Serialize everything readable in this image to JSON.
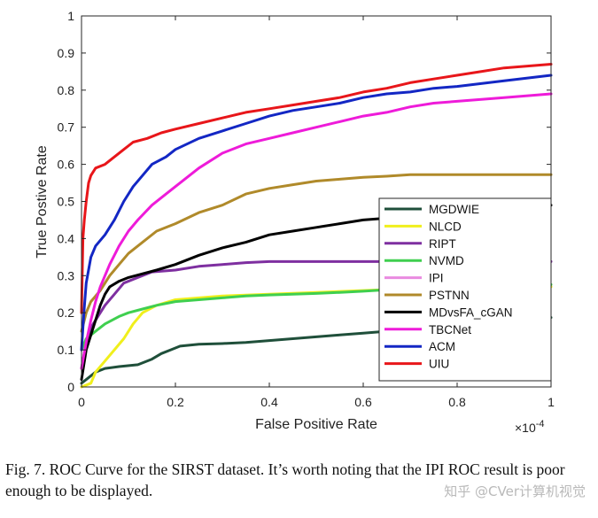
{
  "chart_data": {
    "type": "line",
    "title": "",
    "xlabel": "False Positive Rate",
    "ylabel": "True Postive Rate",
    "x_scale_label": "×10",
    "x_scale_exponent": "-4",
    "xlim": [
      0,
      1
    ],
    "ylim": [
      0,
      1
    ],
    "x_ticks": [
      0,
      0.2,
      0.4,
      0.6,
      0.8,
      1
    ],
    "x_tick_labels": [
      "0",
      "0.2",
      "0.4",
      "0.6",
      "0.8",
      "1"
    ],
    "y_ticks": [
      0,
      0.1,
      0.2,
      0.3,
      0.4,
      0.5,
      0.6,
      0.7,
      0.8,
      0.9,
      1
    ],
    "y_tick_labels": [
      "0",
      "0.1",
      "0.2",
      "0.3",
      "0.4",
      "0.5",
      "0.6",
      "0.7",
      "0.8",
      "0.9",
      "1"
    ],
    "grid": false,
    "legend_position": "lower-right",
    "series": [
      {
        "name": "MGDWIE",
        "color": "#1f4f3a",
        "points": [
          [
            0,
            0.01
          ],
          [
            0.02,
            0.03
          ],
          [
            0.03,
            0.04
          ],
          [
            0.05,
            0.05
          ],
          [
            0.08,
            0.055
          ],
          [
            0.12,
            0.06
          ],
          [
            0.15,
            0.075
          ],
          [
            0.17,
            0.09
          ],
          [
            0.19,
            0.1
          ],
          [
            0.21,
            0.11
          ],
          [
            0.25,
            0.115
          ],
          [
            0.3,
            0.117
          ],
          [
            0.35,
            0.12
          ],
          [
            0.4,
            0.125
          ],
          [
            0.45,
            0.13
          ],
          [
            0.5,
            0.135
          ],
          [
            0.55,
            0.14
          ],
          [
            0.6,
            0.145
          ],
          [
            0.65,
            0.15
          ],
          [
            0.7,
            0.16
          ],
          [
            0.8,
            0.172
          ],
          [
            0.9,
            0.18
          ],
          [
            1,
            0.187
          ]
        ]
      },
      {
        "name": "NLCD",
        "color": "#f0ef1c",
        "points": [
          [
            0,
            0
          ],
          [
            0.02,
            0.01
          ],
          [
            0.03,
            0.04
          ],
          [
            0.05,
            0.07
          ],
          [
            0.07,
            0.1
          ],
          [
            0.09,
            0.13
          ],
          [
            0.11,
            0.17
          ],
          [
            0.13,
            0.2
          ],
          [
            0.16,
            0.22
          ],
          [
            0.2,
            0.235
          ],
          [
            0.25,
            0.24
          ],
          [
            0.3,
            0.245
          ],
          [
            0.4,
            0.25
          ],
          [
            0.5,
            0.255
          ],
          [
            0.6,
            0.26
          ],
          [
            0.7,
            0.265
          ],
          [
            0.8,
            0.268
          ],
          [
            0.9,
            0.27
          ],
          [
            1,
            0.27
          ]
        ]
      },
      {
        "name": "RIPT",
        "color": "#7e2fa0",
        "points": [
          [
            0,
            0.05
          ],
          [
            0.01,
            0.12
          ],
          [
            0.02,
            0.16
          ],
          [
            0.03,
            0.18
          ],
          [
            0.05,
            0.22
          ],
          [
            0.07,
            0.25
          ],
          [
            0.09,
            0.28
          ],
          [
            0.12,
            0.295
          ],
          [
            0.15,
            0.31
          ],
          [
            0.2,
            0.315
          ],
          [
            0.25,
            0.325
          ],
          [
            0.3,
            0.33
          ],
          [
            0.35,
            0.335
          ],
          [
            0.4,
            0.338
          ],
          [
            0.5,
            0.338
          ],
          [
            0.6,
            0.338
          ],
          [
            0.7,
            0.338
          ],
          [
            0.8,
            0.338
          ],
          [
            0.9,
            0.338
          ],
          [
            1,
            0.338
          ]
        ]
      },
      {
        "name": "NVMD",
        "color": "#3fcf4f",
        "points": [
          [
            0,
            0.1
          ],
          [
            0.01,
            0.13
          ],
          [
            0.03,
            0.15
          ],
          [
            0.05,
            0.17
          ],
          [
            0.08,
            0.19
          ],
          [
            0.1,
            0.2
          ],
          [
            0.13,
            0.21
          ],
          [
            0.16,
            0.22
          ],
          [
            0.2,
            0.23
          ],
          [
            0.25,
            0.235
          ],
          [
            0.3,
            0.24
          ],
          [
            0.35,
            0.245
          ],
          [
            0.4,
            0.248
          ],
          [
            0.45,
            0.25
          ],
          [
            0.5,
            0.252
          ],
          [
            0.55,
            0.255
          ],
          [
            0.6,
            0.258
          ],
          [
            0.65,
            0.262
          ],
          [
            0.7,
            0.265
          ],
          [
            0.8,
            0.27
          ],
          [
            0.9,
            0.273
          ],
          [
            1,
            0.276
          ]
        ]
      },
      {
        "name": "IPI",
        "color": "#e98be0",
        "points": []
      },
      {
        "name": "PSTNN",
        "color": "#b08a2a",
        "points": [
          [
            0,
            0.15
          ],
          [
            0.01,
            0.2
          ],
          [
            0.02,
            0.23
          ],
          [
            0.04,
            0.26
          ],
          [
            0.06,
            0.3
          ],
          [
            0.08,
            0.33
          ],
          [
            0.1,
            0.36
          ],
          [
            0.13,
            0.39
          ],
          [
            0.16,
            0.42
          ],
          [
            0.2,
            0.44
          ],
          [
            0.25,
            0.47
          ],
          [
            0.3,
            0.49
          ],
          [
            0.35,
            0.52
          ],
          [
            0.4,
            0.535
          ],
          [
            0.45,
            0.545
          ],
          [
            0.5,
            0.555
          ],
          [
            0.55,
            0.56
          ],
          [
            0.6,
            0.565
          ],
          [
            0.65,
            0.568
          ],
          [
            0.7,
            0.572
          ],
          [
            0.8,
            0.572
          ],
          [
            0.9,
            0.572
          ],
          [
            1,
            0.572
          ]
        ]
      },
      {
        "name": "MDvsFA_cGAN",
        "color": "#000000",
        "points": [
          [
            0,
            0.02
          ],
          [
            0.01,
            0.1
          ],
          [
            0.02,
            0.14
          ],
          [
            0.03,
            0.18
          ],
          [
            0.04,
            0.22
          ],
          [
            0.05,
            0.25
          ],
          [
            0.06,
            0.27
          ],
          [
            0.08,
            0.285
          ],
          [
            0.1,
            0.295
          ],
          [
            0.13,
            0.305
          ],
          [
            0.16,
            0.315
          ],
          [
            0.2,
            0.33
          ],
          [
            0.25,
            0.355
          ],
          [
            0.3,
            0.375
          ],
          [
            0.35,
            0.39
          ],
          [
            0.4,
            0.41
          ],
          [
            0.45,
            0.42
          ],
          [
            0.5,
            0.43
          ],
          [
            0.55,
            0.44
          ],
          [
            0.6,
            0.45
          ],
          [
            0.65,
            0.455
          ],
          [
            0.7,
            0.465
          ],
          [
            0.8,
            0.475
          ],
          [
            0.9,
            0.485
          ],
          [
            1,
            0.49
          ]
        ]
      },
      {
        "name": "TBCNet",
        "color": "#ee1bd9",
        "points": [
          [
            0,
            0.05
          ],
          [
            0.01,
            0.12
          ],
          [
            0.02,
            0.18
          ],
          [
            0.03,
            0.23
          ],
          [
            0.04,
            0.27
          ],
          [
            0.05,
            0.3
          ],
          [
            0.06,
            0.33
          ],
          [
            0.08,
            0.38
          ],
          [
            0.1,
            0.42
          ],
          [
            0.12,
            0.45
          ],
          [
            0.15,
            0.49
          ],
          [
            0.18,
            0.52
          ],
          [
            0.2,
            0.54
          ],
          [
            0.25,
            0.59
          ],
          [
            0.3,
            0.63
          ],
          [
            0.35,
            0.655
          ],
          [
            0.4,
            0.67
          ],
          [
            0.45,
            0.685
          ],
          [
            0.5,
            0.7
          ],
          [
            0.55,
            0.715
          ],
          [
            0.6,
            0.73
          ],
          [
            0.65,
            0.74
          ],
          [
            0.7,
            0.755
          ],
          [
            0.75,
            0.765
          ],
          [
            0.8,
            0.77
          ],
          [
            0.9,
            0.78
          ],
          [
            1,
            0.79
          ]
        ]
      },
      {
        "name": "ACM",
        "color": "#1327c4",
        "points": [
          [
            0,
            0.1
          ],
          [
            0.005,
            0.2
          ],
          [
            0.01,
            0.28
          ],
          [
            0.02,
            0.35
          ],
          [
            0.03,
            0.38
          ],
          [
            0.05,
            0.41
          ],
          [
            0.07,
            0.45
          ],
          [
            0.09,
            0.5
          ],
          [
            0.11,
            0.54
          ],
          [
            0.13,
            0.57
          ],
          [
            0.15,
            0.6
          ],
          [
            0.18,
            0.62
          ],
          [
            0.2,
            0.64
          ],
          [
            0.25,
            0.67
          ],
          [
            0.3,
            0.69
          ],
          [
            0.35,
            0.71
          ],
          [
            0.4,
            0.73
          ],
          [
            0.45,
            0.745
          ],
          [
            0.5,
            0.755
          ],
          [
            0.55,
            0.765
          ],
          [
            0.6,
            0.78
          ],
          [
            0.65,
            0.79
          ],
          [
            0.7,
            0.795
          ],
          [
            0.75,
            0.805
          ],
          [
            0.8,
            0.81
          ],
          [
            0.9,
            0.825
          ],
          [
            1,
            0.84
          ]
        ]
      },
      {
        "name": "UIU",
        "color": "#e8161a",
        "points": [
          [
            0,
            0.2
          ],
          [
            0.003,
            0.4
          ],
          [
            0.006,
            0.45
          ],
          [
            0.01,
            0.5
          ],
          [
            0.015,
            0.55
          ],
          [
            0.02,
            0.57
          ],
          [
            0.03,
            0.59
          ],
          [
            0.05,
            0.6
          ],
          [
            0.07,
            0.62
          ],
          [
            0.09,
            0.64
          ],
          [
            0.11,
            0.66
          ],
          [
            0.14,
            0.67
          ],
          [
            0.17,
            0.685
          ],
          [
            0.2,
            0.695
          ],
          [
            0.25,
            0.71
          ],
          [
            0.3,
            0.725
          ],
          [
            0.35,
            0.74
          ],
          [
            0.4,
            0.75
          ],
          [
            0.45,
            0.76
          ],
          [
            0.5,
            0.77
          ],
          [
            0.55,
            0.78
          ],
          [
            0.6,
            0.795
          ],
          [
            0.65,
            0.805
          ],
          [
            0.7,
            0.82
          ],
          [
            0.75,
            0.83
          ],
          [
            0.8,
            0.84
          ],
          [
            0.85,
            0.85
          ],
          [
            0.9,
            0.86
          ],
          [
            0.95,
            0.865
          ],
          [
            1,
            0.87
          ]
        ]
      }
    ]
  },
  "caption": "Fig. 7.  ROC Curve for the SIRST dataset. It’s worth noting that the IPI ROC result is poor enough to be displayed.",
  "watermark": "知乎 @CVer计算机视觉"
}
